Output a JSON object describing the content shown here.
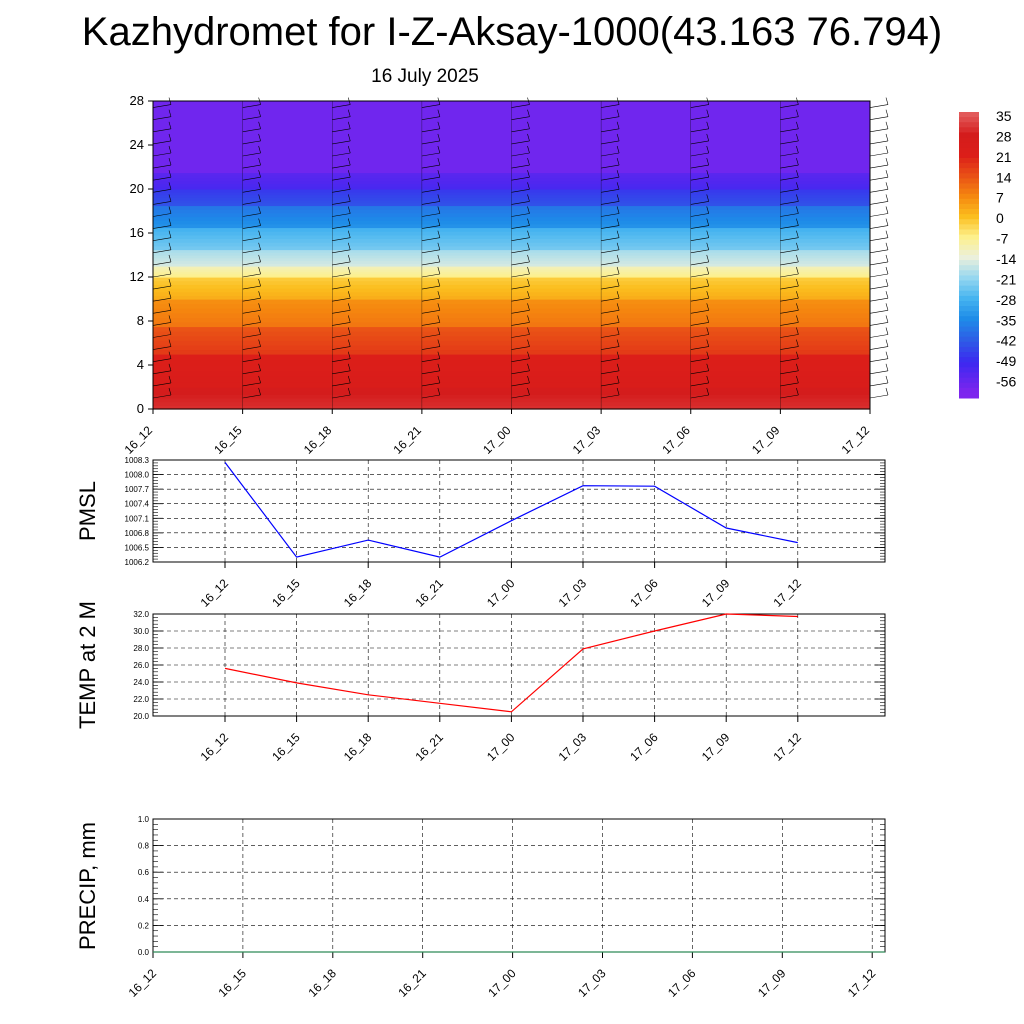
{
  "title": "Kazhydromet for I-Z-Aksay-1000(43.163 76.794)",
  "date_label": "16 July 2025",
  "colorbar": {
    "labels": [
      "35",
      "28",
      "21",
      "14",
      "7",
      "0",
      "-7",
      "-14",
      "-21",
      "-28",
      "-35",
      "-42",
      "-49",
      "-56"
    ],
    "colors": [
      "#f2a9a9",
      "#e34a4a",
      "#d71d1d",
      "#e02a1e",
      "#ec5a14",
      "#f58a10",
      "#fbb514",
      "#fde66a",
      "#bfe6ef",
      "#47b6f0",
      "#1e8ee8",
      "#2e5ee6",
      "#3b2ef0",
      "#7e26ee"
    ]
  },
  "chart_data": [
    {
      "type": "heatmap",
      "title": "",
      "ylabel": "",
      "x_ticks": [
        "16_12",
        "16_15",
        "16_18",
        "16_21",
        "17_00",
        "17_03",
        "17_06",
        "17_09",
        "17_12"
      ],
      "y_ticks": [
        0,
        4,
        8,
        12,
        16,
        20,
        24,
        28
      ],
      "ylim": [
        0,
        28
      ],
      "value_range": [
        -56,
        35
      ],
      "bands": [
        {
          "from": 0,
          "to": 2,
          "value": 30
        },
        {
          "from": 2,
          "to": 5,
          "value": 24
        },
        {
          "from": 5,
          "to": 7.5,
          "value": 17
        },
        {
          "from": 7.5,
          "to": 10,
          "value": 9
        },
        {
          "from": 10,
          "to": 12,
          "value": 2
        },
        {
          "from": 12,
          "to": 13,
          "value": -7
        },
        {
          "from": 13,
          "to": 14.5,
          "value": -16
        },
        {
          "from": 14.5,
          "to": 16.5,
          "value": -24
        },
        {
          "from": 16.5,
          "to": 18.5,
          "value": -34
        },
        {
          "from": 18.5,
          "to": 20,
          "value": -44
        },
        {
          "from": 20,
          "to": 21.5,
          "value": -52
        },
        {
          "from": 21.5,
          "to": 28,
          "value": -58
        }
      ]
    },
    {
      "type": "line",
      "ylabel": "PMSL",
      "x_ticks": [
        "16_12",
        "16_15",
        "16_18",
        "16_21",
        "17_00",
        "17_03",
        "17_06",
        "17_09",
        "17_12"
      ],
      "y_ticks": [
        "1006.2",
        "1006.5",
        "1006.8",
        "1007.1",
        "1007.4",
        "1007.7",
        "1008.0",
        "1008.3"
      ],
      "ylim": [
        1006.2,
        1008.3
      ],
      "grid": true,
      "series": [
        {
          "color": "#0000ff",
          "values": [
            1008.25,
            1006.3,
            1006.65,
            1006.3,
            1007.05,
            1007.77,
            1007.76,
            1006.9,
            1006.6
          ]
        }
      ]
    },
    {
      "type": "line",
      "ylabel": "TEMP at 2 M",
      "x_ticks": [
        "16_12",
        "16_15",
        "16_18",
        "16_21",
        "17_00",
        "17_03",
        "17_06",
        "17_09",
        "17_12"
      ],
      "y_ticks": [
        "20.0",
        "22.0",
        "24.0",
        "26.0",
        "28.0",
        "30.0",
        "32.0"
      ],
      "ylim": [
        20,
        32
      ],
      "grid": true,
      "series": [
        {
          "color": "#ff0000",
          "values": [
            25.6,
            23.9,
            22.5,
            21.5,
            20.5,
            27.9,
            30.0,
            32.0,
            31.7
          ]
        }
      ]
    },
    {
      "type": "line",
      "ylabel": "PRECIP, mm",
      "x_ticks": [
        "16_12",
        "16_15",
        "16_18",
        "16_21",
        "17_00",
        "17_03",
        "17_06",
        "17_09",
        "17_12"
      ],
      "y_ticks": [
        "0.0",
        "0.2",
        "0.4",
        "0.6",
        "0.8",
        "1.0"
      ],
      "ylim": [
        0,
        1
      ],
      "grid": true,
      "series": [
        {
          "color": "#2e8b57",
          "values": [
            0,
            0,
            0,
            0,
            0,
            0,
            0,
            0,
            0
          ]
        }
      ]
    }
  ]
}
